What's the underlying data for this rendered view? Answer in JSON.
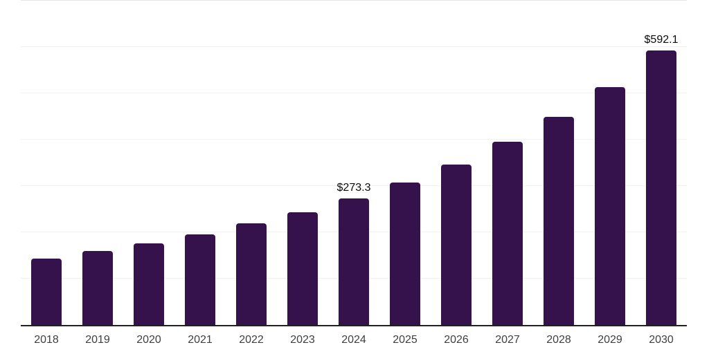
{
  "chart_data": {
    "type": "bar",
    "title": "",
    "xlabel": "",
    "ylabel": "",
    "categories": [
      "2018",
      "2019",
      "2020",
      "2021",
      "2022",
      "2023",
      "2024",
      "2025",
      "2026",
      "2027",
      "2028",
      "2029",
      "2030"
    ],
    "values": [
      144,
      160,
      176,
      195,
      219,
      243,
      273.3,
      308,
      347,
      395,
      449,
      514,
      592.1
    ],
    "value_labels": {
      "2024": "$273.3",
      "2030": "$592.1"
    },
    "ylim": [
      0,
      700
    ],
    "grid_step": 100,
    "grid": "horizontal",
    "legend_position": "none",
    "colors": {
      "bar": "#36124D",
      "gridline": "#f1f1f1",
      "top_gridline": "#e7e7e7",
      "axis_line": "#202020",
      "tick_label": "#3f3f3f",
      "value_label": "#0a0a0a",
      "background": "#ffffff"
    }
  }
}
